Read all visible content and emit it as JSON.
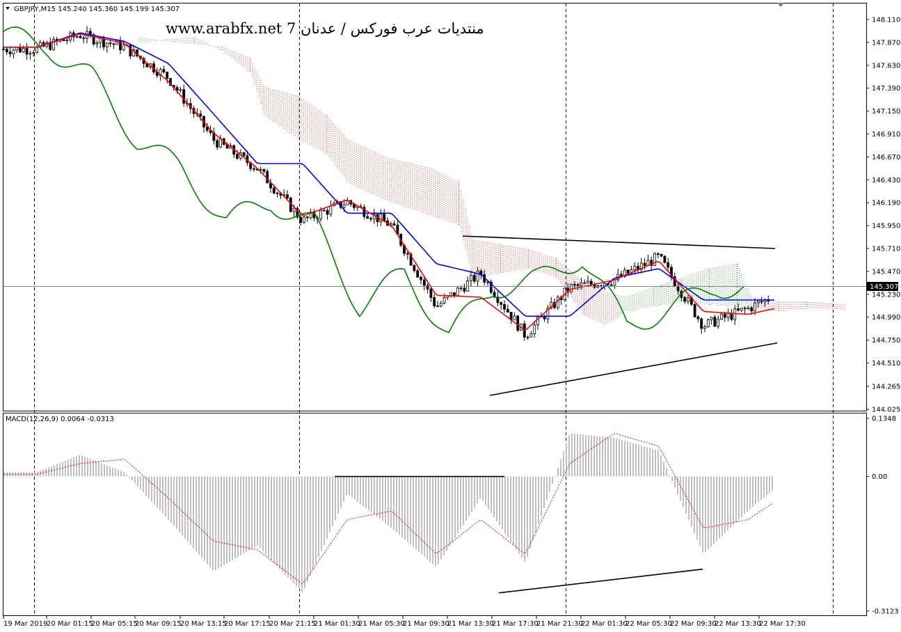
{
  "window": {
    "symbol_info": "GBPJPY,M15  145.240 145.360 145.199 145.307",
    "watermark": "www.arabfx.net 7 منتديات عرب فوركس / عدنان",
    "current_price": "145.307"
  },
  "macd_panel": {
    "label": "MACD(12,26,9) 0.0064 -0.0313",
    "ticks": [
      "0.1348",
      "0.00",
      "-0.3123"
    ]
  },
  "price_axis": {
    "ticks": [
      "148.110",
      "147.870",
      "147.630",
      "147.390",
      "147.150",
      "146.910",
      "146.670",
      "146.430",
      "146.190",
      "145.950",
      "145.710",
      "145.470",
      "145.230",
      "144.990",
      "144.750",
      "144.510",
      "144.265",
      "144.025"
    ]
  },
  "time_axis": {
    "labels": [
      "19 Mar 2019",
      "20 Mar 01:15",
      "20 Mar 05:15",
      "20 Mar 09:15",
      "20 Mar 13:15",
      "20 Mar 17:15",
      "20 Mar 21:15",
      "21 Mar 01:30",
      "21 Mar 05:30",
      "21 Mar 09:30",
      "21 Mar 13:30",
      "21 Mar 17:30",
      "21 Mar 21:30",
      "22 Mar 01:30",
      "22 Mar 05:30",
      "22 Mar 09:30",
      "22 Mar 13:30",
      "22 Mar 17:30"
    ]
  },
  "colors": {
    "tenkan": "#ff0000",
    "kijun": "#0000ff",
    "chikou": "#008000",
    "cloud_bull": "#008000",
    "cloud_bear": "#cc0000",
    "macd_hist": "#c0c0c0",
    "macd_signal": "#ff0000",
    "grid": "#000000"
  },
  "chart_data": [
    {
      "type": "candlestick",
      "title": "GBPJPY,M15",
      "indicators": [
        "Ichimoku Kinko Hyo",
        "Tenkan-sen",
        "Kijun-sen",
        "Chikou Span",
        "Senkou Span A/B cloud"
      ],
      "x": [
        "19 Mar 2019",
        "20 Mar 01:15",
        "20 Mar 05:15",
        "20 Mar 09:15",
        "20 Mar 13:15",
        "20 Mar 17:15",
        "20 Mar 21:15",
        "21 Mar 01:30",
        "21 Mar 05:30",
        "21 Mar 09:30",
        "21 Mar 13:30",
        "21 Mar 17:30",
        "21 Mar 21:30",
        "22 Mar 01:30",
        "22 Mar 05:30",
        "22 Mar 09:30",
        "22 Mar 13:30",
        "22 Mar 17:30"
      ],
      "close": [
        147.8,
        147.95,
        147.82,
        147.5,
        146.85,
        146.55,
        146.0,
        146.2,
        145.95,
        145.1,
        145.45,
        144.8,
        145.3,
        145.38,
        145.62,
        144.9,
        145.08,
        145.307
      ],
      "tenkan": [
        147.82,
        147.96,
        147.86,
        147.46,
        146.92,
        146.55,
        146.05,
        146.22,
        145.95,
        145.22,
        145.2,
        144.85,
        145.28,
        145.38,
        145.58,
        145.05,
        145.02,
        145.12
      ],
      "kijun": [
        147.82,
        147.97,
        147.88,
        147.65,
        147.12,
        146.6,
        146.6,
        146.08,
        146.08,
        145.55,
        145.44,
        145.0,
        145.0,
        145.4,
        145.5,
        145.17,
        145.17,
        145.17
      ],
      "ylim": [
        144.025,
        148.11
      ],
      "trendlines": [
        "resistance 145.84 to 145.71",
        "support 144.17 to 144.72"
      ],
      "current_price": 145.307
    },
    {
      "type": "bar",
      "title": "MACD(12,26,9)",
      "x": [
        "19 Mar 2019",
        "20 Mar 01:15",
        "20 Mar 05:15",
        "20 Mar 09:15",
        "20 Mar 13:15",
        "20 Mar 17:15",
        "20 Mar 21:15",
        "21 Mar 01:30",
        "21 Mar 05:30",
        "21 Mar 09:30",
        "21 Mar 13:30",
        "21 Mar 17:30",
        "21 Mar 21:30",
        "22 Mar 01:30",
        "22 Mar 05:30",
        "22 Mar 09:30",
        "22 Mar 13:30",
        "22 Mar 17:30"
      ],
      "macd": [
        0.01,
        0.05,
        0.01,
        -0.1,
        -0.22,
        -0.16,
        -0.27,
        -0.04,
        -0.12,
        -0.21,
        -0.05,
        -0.2,
        0.1,
        0.09,
        0.06,
        -0.18,
        -0.08,
        0.0064
      ],
      "signal": [
        0.005,
        0.03,
        0.04,
        -0.05,
        -0.15,
        -0.17,
        -0.25,
        -0.1,
        -0.08,
        -0.18,
        -0.1,
        -0.18,
        0.03,
        0.1,
        0.07,
        -0.12,
        -0.1,
        -0.0313
      ],
      "ylim": [
        -0.3123,
        0.1348
      ],
      "trendlines": [
        "zero-line resistance",
        "rising lows from 21 Mar 17:30 to 22 Mar 09:30"
      ]
    }
  ]
}
